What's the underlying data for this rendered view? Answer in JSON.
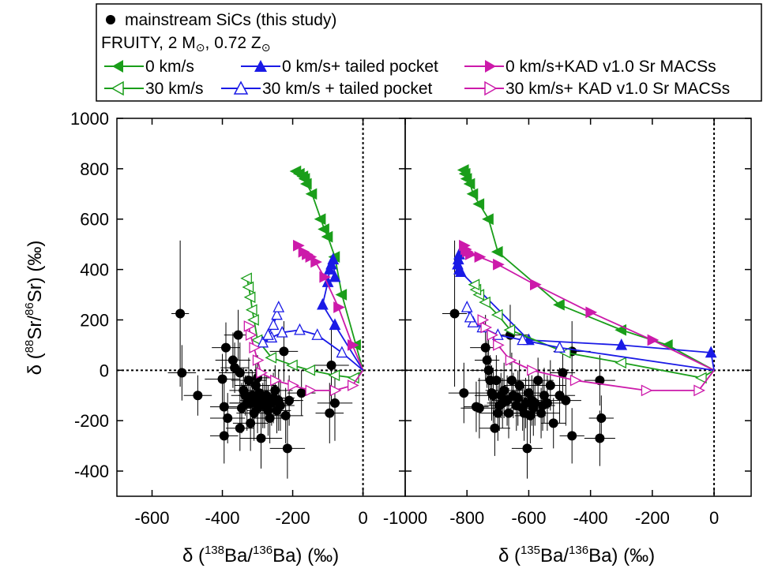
{
  "legend": {
    "mainstream": "mainstream SiCs (this study)",
    "model_pre": "FRUITY, 2 M",
    "model_mid": ", 0.72 Z",
    "s1": "0 km/s",
    "s2": "0 km/s+ tailed pocket",
    "s3": "0 km/s+KAD v1.0 Sr MACSs",
    "s4": "30 km/s",
    "s5": "30 km/s + tailed pocket",
    "s6": "30 km/s+ KAD v1.0 Sr MACSs"
  },
  "axes": {
    "ylabel": {
      "a": "δ (",
      "m1": "88",
      "b": "Sr/",
      "m2": "86",
      "c": "Sr) (‰)"
    },
    "xlabel_left": {
      "a": "δ (",
      "m1": "138",
      "b": "Ba/",
      "m2": "136",
      "c": "Ba) (‰)"
    },
    "xlabel_right": {
      "a": "δ (",
      "m1": "135",
      "b": "Ba/",
      "m2": "136",
      "c": "Ba) (‰)"
    },
    "y_ticks": [
      "1000",
      "800",
      "600",
      "400",
      "200",
      "0",
      "-200",
      "-400"
    ],
    "x_ticks_left": [
      "-600",
      "-400",
      "-200",
      "0"
    ],
    "x_ticks_right": [
      "-1000",
      "-800",
      "-600",
      "-400",
      "-200",
      "0"
    ]
  },
  "colors": {
    "green": "#1a9e1a",
    "blue": "#1a1ae6",
    "magenta": "#cc1aaa",
    "black": "#000000"
  },
  "chart_data": [
    {
      "type": "scatter",
      "panel": "left",
      "xlabel": "δ (138Ba/136Ba) (‰)",
      "ylabel": "δ (88Sr/86Sr) (‰)",
      "xlim": [
        -700,
        120
      ],
      "ylim": [
        -500,
        1000
      ],
      "grid": false,
      "reference_lines": {
        "x": 0,
        "y": 0
      },
      "series": [
        {
          "name": "mainstream SiCs (this study)",
          "kind": "data",
          "points": [
            [
              -520,
              225,
              25,
              290
            ],
            [
              -515,
              -10,
              40,
              110
            ],
            [
              -470,
              -100,
              40,
              80
            ],
            [
              -400,
              -35,
              50,
              100
            ],
            [
              -395,
              -145,
              40,
              100
            ],
            [
              -390,
              90,
              40,
              100
            ],
            [
              -385,
              -190,
              50,
              100
            ],
            [
              -395,
              -260,
              40,
              110
            ],
            [
              -370,
              40,
              50,
              110
            ],
            [
              -365,
              10,
              40,
              100
            ],
            [
              -355,
              140,
              40,
              100
            ],
            [
              -350,
              -10,
              60,
              120
            ],
            [
              -345,
              -150,
              50,
              100
            ],
            [
              -340,
              -80,
              40,
              90
            ],
            [
              -335,
              -100,
              40,
              80
            ],
            [
              -330,
              -130,
              50,
              110
            ],
            [
              -325,
              -40,
              50,
              90
            ],
            [
              -320,
              -130,
              60,
              90
            ],
            [
              -320,
              -210,
              50,
              110
            ],
            [
              -315,
              -100,
              40,
              100
            ],
            [
              -310,
              -170,
              50,
              110
            ],
            [
              -305,
              -60,
              60,
              120
            ],
            [
              -300,
              -120,
              50,
              100
            ],
            [
              -300,
              -150,
              50,
              100
            ],
            [
              -295,
              -90,
              40,
              80
            ],
            [
              -290,
              -270,
              60,
              120
            ],
            [
              -285,
              -140,
              40,
              90
            ],
            [
              -280,
              -120,
              50,
              110
            ],
            [
              -275,
              -100,
              40,
              80
            ],
            [
              -270,
              -160,
              60,
              100
            ],
            [
              -265,
              -190,
              50,
              100
            ],
            [
              -260,
              -130,
              40,
              90
            ],
            [
              -255,
              -110,
              60,
              100
            ],
            [
              -250,
              -80,
              50,
              100
            ],
            [
              -245,
              -160,
              40,
              90
            ],
            [
              -240,
              -120,
              60,
              120
            ],
            [
              -235,
              -140,
              40,
              100
            ],
            [
              -225,
              75,
              40,
              120
            ],
            [
              -220,
              -180,
              50,
              110
            ],
            [
              -215,
              -310,
              50,
              120
            ],
            [
              -210,
              -120,
              40,
              100
            ],
            [
              -175,
              -90,
              40,
              90
            ],
            [
              -90,
              20,
              50,
              150
            ],
            [
              -95,
              -170,
              40,
              120
            ],
            [
              -80,
              -130,
              50,
              150
            ],
            [
              -350,
              -230,
              40,
              90
            ],
            [
              -300,
              -30,
              40,
              90
            ]
          ]
        },
        {
          "name": "0 km/s",
          "kind": "model",
          "marker": "filled-left-triangle",
          "color": "#1a9e1a",
          "x": [
            0,
            -20,
            -60,
            -80,
            -100,
            -110,
            -120,
            -145,
            -160,
            -165,
            -170,
            -180,
            -190
          ],
          "y": [
            0,
            100,
            300,
            450,
            530,
            560,
            600,
            700,
            740,
            760,
            770,
            780,
            790
          ]
        },
        {
          "name": "0 km/s+ tailed pocket",
          "kind": "model",
          "marker": "filled-up-triangle",
          "color": "#1a1ae6",
          "x": [
            0,
            -80,
            -115,
            -100,
            -95,
            -90,
            -85,
            -80
          ],
          "y": [
            0,
            180,
            260,
            350,
            400,
            420,
            440,
            370
          ]
        },
        {
          "name": "0 km/s+KAD v1.0 Sr MACSs",
          "kind": "model",
          "marker": "filled-right-triangle",
          "color": "#cc1aaa",
          "x": [
            0,
            -30,
            -70,
            -110,
            -135,
            -150,
            -160,
            -170,
            -185
          ],
          "y": [
            0,
            100,
            250,
            370,
            430,
            450,
            460,
            470,
            495
          ]
        },
        {
          "name": "30 km/s",
          "kind": "model",
          "marker": "open-left-triangle",
          "color": "#1a9e1a",
          "x": [
            0,
            -25,
            -80,
            -150,
            -200,
            -260,
            -300,
            -310,
            -315,
            -320,
            -325,
            -330
          ],
          "y": [
            0,
            -30,
            -20,
            0,
            20,
            50,
            120,
            200,
            240,
            290,
            330,
            365
          ]
        },
        {
          "name": "30 km/s + tailed pocket",
          "kind": "model",
          "marker": "open-up-triangle",
          "color": "#1a1ae6",
          "x": [
            0,
            -60,
            -130,
            -180,
            -230,
            -260,
            -285,
            -270,
            -255,
            -245,
            -240
          ],
          "y": [
            0,
            70,
            140,
            160,
            150,
            130,
            110,
            140,
            180,
            220,
            250
          ]
        },
        {
          "name": "30 km/s+ KAD v1.0 Sr MACSs",
          "kind": "model",
          "marker": "open-right-triangle",
          "color": "#cc1aaa",
          "x": [
            0,
            -30,
            -80,
            -150,
            -200,
            -250,
            -290,
            -300,
            -310,
            -320,
            -325
          ],
          "y": [
            0,
            -60,
            -80,
            -80,
            -60,
            -40,
            -10,
            40,
            90,
            140,
            175
          ]
        }
      ]
    },
    {
      "type": "scatter",
      "panel": "right",
      "xlabel": "δ (135Ba/136Ba) (‰)",
      "ylabel": "δ (88Sr/86Sr) (‰)",
      "xlim": [
        -1000,
        120
      ],
      "ylim": [
        -500,
        1000
      ],
      "grid": false,
      "reference_lines": {
        "x": 0,
        "y": 0
      },
      "series": [
        {
          "name": "mainstream SiCs (this study)",
          "kind": "data",
          "points": [
            [
              -840,
              225,
              40,
              290
            ],
            [
              -810,
              -90,
              50,
              120
            ],
            [
              -770,
              -145,
              40,
              100
            ],
            [
              -760,
              -150,
              60,
              120
            ],
            [
              -740,
              90,
              50,
              130
            ],
            [
              -735,
              40,
              40,
              110
            ],
            [
              -730,
              0,
              60,
              120
            ],
            [
              -725,
              -40,
              40,
              100
            ],
            [
              -720,
              -90,
              50,
              110
            ],
            [
              -715,
              -100,
              60,
              110
            ],
            [
              -710,
              -230,
              50,
              110
            ],
            [
              -705,
              -40,
              40,
              100
            ],
            [
              -700,
              -170,
              60,
              110
            ],
            [
              -695,
              -140,
              50,
              100
            ],
            [
              -690,
              -100,
              40,
              90
            ],
            [
              -685,
              -130,
              50,
              100
            ],
            [
              -680,
              -80,
              60,
              110
            ],
            [
              -670,
              -120,
              50,
              100
            ],
            [
              -665,
              -170,
              40,
              100
            ],
            [
              -660,
              140,
              60,
              120
            ],
            [
              -655,
              -40,
              50,
              110
            ],
            [
              -650,
              -100,
              40,
              90
            ],
            [
              -640,
              -140,
              50,
              100
            ],
            [
              -635,
              -110,
              60,
              110
            ],
            [
              -630,
              -60,
              50,
              100
            ],
            [
              -620,
              -150,
              40,
              90
            ],
            [
              -615,
              -170,
              50,
              110
            ],
            [
              -610,
              -130,
              60,
              100
            ],
            [
              -605,
              -310,
              50,
              120
            ],
            [
              -600,
              -90,
              40,
              100
            ],
            [
              -595,
              -180,
              50,
              110
            ],
            [
              -590,
              -120,
              60,
              100
            ],
            [
              -585,
              -150,
              50,
              110
            ],
            [
              -580,
              -130,
              40,
              90
            ],
            [
              -570,
              -40,
              50,
              90
            ],
            [
              -560,
              -170,
              60,
              100
            ],
            [
              -555,
              -140,
              40,
              100
            ],
            [
              -550,
              -100,
              50,
              110
            ],
            [
              -540,
              -130,
              60,
              110
            ],
            [
              -530,
              -60,
              50,
              100
            ],
            [
              -520,
              -210,
              40,
              100
            ],
            [
              -500,
              -100,
              50,
              110
            ],
            [
              -490,
              -10,
              40,
              90
            ],
            [
              -480,
              -120,
              50,
              100
            ],
            [
              -460,
              75,
              60,
              120
            ],
            [
              -460,
              -260,
              40,
              110
            ],
            [
              -370,
              -40,
              50,
              100
            ],
            [
              -365,
              -190,
              40,
              90
            ],
            [
              -370,
              -270,
              50,
              110
            ]
          ]
        },
        {
          "name": "0 km/s",
          "kind": "model",
          "marker": "filled-left-triangle",
          "color": "#1a9e1a",
          "x": [
            0,
            -150,
            -300,
            -500,
            -700,
            -730,
            -760,
            -780,
            -790,
            -800,
            -805,
            -810
          ],
          "y": [
            0,
            100,
            160,
            260,
            470,
            600,
            660,
            700,
            740,
            760,
            780,
            795
          ]
        },
        {
          "name": "0 km/s+ tailed pocket",
          "kind": "model",
          "marker": "filled-up-triangle",
          "color": "#1a1ae6",
          "x": [
            0,
            -10,
            -300,
            -600,
            -820,
            -825,
            -830,
            -828,
            -825
          ],
          "y": [
            0,
            70,
            100,
            120,
            390,
            400,
            420,
            440,
            460
          ]
        },
        {
          "name": "0 km/s+KAD v1.0 Sr MACSs",
          "kind": "model",
          "marker": "filled-right-triangle",
          "color": "#cc1aaa",
          "x": [
            0,
            -200,
            -400,
            -580,
            -700,
            -760,
            -790,
            -800,
            -805,
            -810
          ],
          "y": [
            0,
            120,
            230,
            340,
            420,
            450,
            460,
            470,
            480,
            495
          ]
        },
        {
          "name": "30 km/s",
          "kind": "model",
          "marker": "open-left-triangle",
          "color": "#1a9e1a",
          "x": [
            0,
            -40,
            -300,
            -480,
            -660,
            -700,
            -740,
            -760,
            -770,
            -775
          ],
          "y": [
            0,
            -30,
            30,
            70,
            160,
            220,
            270,
            300,
            320,
            340
          ]
        },
        {
          "name": "30 km/s + tailed pocket",
          "kind": "model",
          "marker": "open-up-triangle",
          "color": "#1a1ae6",
          "x": [
            0,
            -500,
            -620,
            -700,
            -750,
            -780,
            -790,
            -800
          ],
          "y": [
            0,
            90,
            120,
            140,
            170,
            190,
            210,
            250
          ]
        },
        {
          "name": "30 km/s+ KAD v1.0 Sr MACSs",
          "kind": "model",
          "marker": "open-right-triangle",
          "color": "#cc1aaa",
          "x": [
            0,
            -50,
            -220,
            -450,
            -590,
            -660,
            -700,
            -720,
            -740,
            -750
          ],
          "y": [
            0,
            -80,
            -80,
            -40,
            0,
            40,
            100,
            140,
            170,
            200
          ]
        }
      ]
    }
  ]
}
